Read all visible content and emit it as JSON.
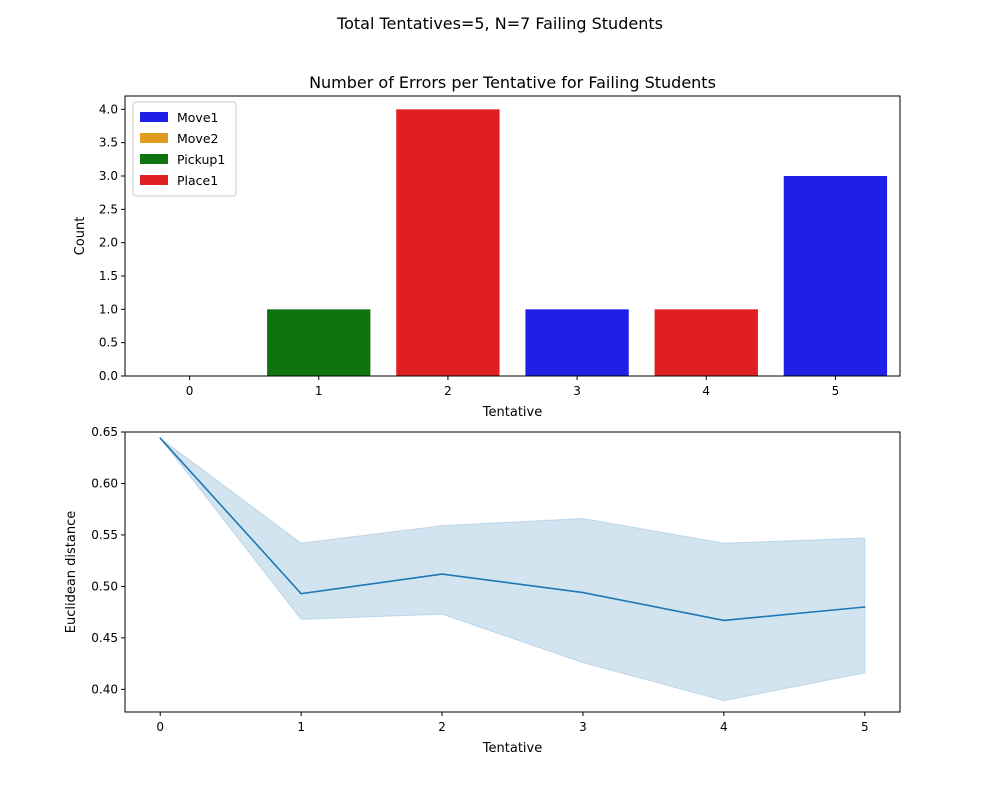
{
  "figure": {
    "suptitle": "Total Tentatives=5, N=7 Failing Students"
  },
  "chart_data": [
    {
      "type": "bar",
      "title": "Number of Errors per Tentative for Failing Students",
      "xlabel": "Tentative",
      "ylabel": "Count",
      "categories": [
        "0",
        "1",
        "2",
        "3",
        "4",
        "5"
      ],
      "values": [
        0,
        1,
        4,
        1,
        1,
        3
      ],
      "bar_series": [
        "",
        "Pickup1",
        "Place1",
        "Move1",
        "Place1",
        "Move1"
      ],
      "ylim": [
        0,
        4.2
      ],
      "yticks": [
        "0.0",
        "0.5",
        "1.0",
        "1.5",
        "2.0",
        "2.5",
        "3.0",
        "3.5",
        "4.0"
      ],
      "legend": {
        "placement": "upper-left",
        "entries": [
          {
            "name": "Move1",
            "color": "#1f1fe6"
          },
          {
            "name": "Move2",
            "color": "#e09c1e"
          },
          {
            "name": "Pickup1",
            "color": "#0f730f"
          },
          {
            "name": "Place1",
            "color": "#e01f22"
          }
        ]
      },
      "grid": false
    },
    {
      "type": "line",
      "title": "",
      "xlabel": "Tentative",
      "ylabel": "Euclidean distance",
      "x": [
        0,
        1,
        2,
        3,
        4,
        5
      ],
      "y": [
        0.644,
        0.493,
        0.512,
        0.494,
        0.467,
        0.48
      ],
      "ci_upper": [
        0.644,
        0.542,
        0.559,
        0.566,
        0.542,
        0.547
      ],
      "ci_lower": [
        0.644,
        0.468,
        0.473,
        0.426,
        0.389,
        0.416
      ],
      "xlim": [
        -0.25,
        5.25
      ],
      "ylim": [
        0.378,
        0.65
      ],
      "xticks": [
        "0",
        "1",
        "2",
        "3",
        "4",
        "5"
      ],
      "yticks": [
        "0.40",
        "0.45",
        "0.50",
        "0.55",
        "0.60",
        "0.65"
      ],
      "line_color": "#1f77b4",
      "band_color": "#1f77b4",
      "grid": false
    }
  ]
}
